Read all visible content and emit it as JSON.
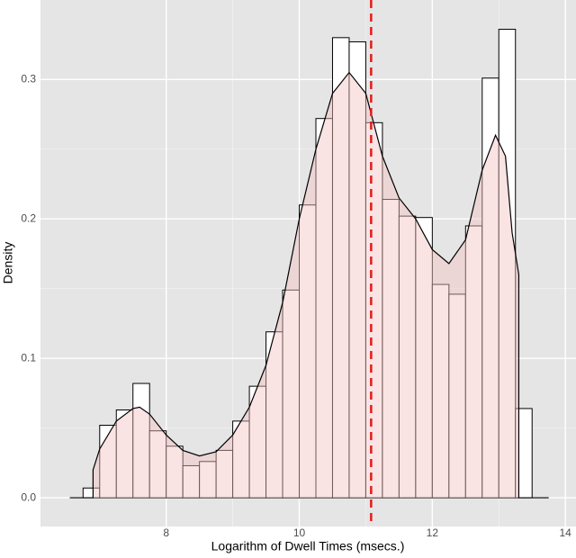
{
  "chart_data": {
    "type": "histogram",
    "xlabel": "Logarithm of Dwell Times (msecs.)",
    "ylabel": "Density",
    "bins": [
      6.75,
      7.0,
      7.25,
      7.5,
      7.75,
      8.0,
      8.25,
      8.5,
      8.75,
      9.0,
      9.25,
      9.5,
      9.75,
      10.0,
      10.25,
      10.5,
      10.75,
      11.0,
      11.25,
      11.5,
      11.75,
      12.0,
      12.25,
      12.5,
      12.75,
      13.0,
      13.25,
      13.5
    ],
    "counts": [
      0.007,
      0.052,
      0.063,
      0.082,
      0.048,
      0.037,
      0.023,
      0.026,
      0.034,
      0.055,
      0.08,
      0.119,
      0.149,
      0.21,
      0.272,
      0.33,
      0.327,
      0.269,
      0.214,
      0.202,
      0.201,
      0.153,
      0.146,
      0.195,
      0.301,
      0.336,
      0.064
    ],
    "bar_color": "#ffffff",
    "bar_edge": "#000000",
    "density": {
      "x": [
        6.55,
        6.9,
        6.9,
        7.0,
        7.25,
        7.5,
        7.6,
        7.75,
        8.0,
        8.25,
        8.5,
        8.75,
        9.0,
        9.25,
        9.5,
        9.75,
        10.0,
        10.25,
        10.5,
        10.75,
        11.0,
        11.25,
        11.5,
        11.75,
        12.0,
        12.25,
        12.5,
        12.75,
        12.95,
        13.1,
        13.2,
        13.3,
        13.3,
        13.75
      ],
      "values": [
        0,
        0,
        0.02,
        0.035,
        0.055,
        0.064,
        0.065,
        0.06,
        0.045,
        0.034,
        0.03,
        0.033,
        0.045,
        0.065,
        0.095,
        0.14,
        0.2,
        0.25,
        0.29,
        0.305,
        0.29,
        0.245,
        0.215,
        0.2,
        0.178,
        0.168,
        0.185,
        0.235,
        0.26,
        0.245,
        0.19,
        0.16,
        0,
        0
      ],
      "color": "#000000",
      "fill": "#f4c2c2"
    },
    "vline": {
      "x": 11.08,
      "color": "#e41a1c",
      "style": "dashed"
    },
    "xlim": [
      6.11,
      14.16
    ],
    "ylim": [
      -0.0206,
      0.357
    ],
    "xticks": [
      8,
      10,
      12,
      14
    ],
    "yticks": [
      {
        "value": 0,
        "label": "0.0"
      },
      0.1,
      0.2,
      0.3
    ],
    "grid": true
  }
}
